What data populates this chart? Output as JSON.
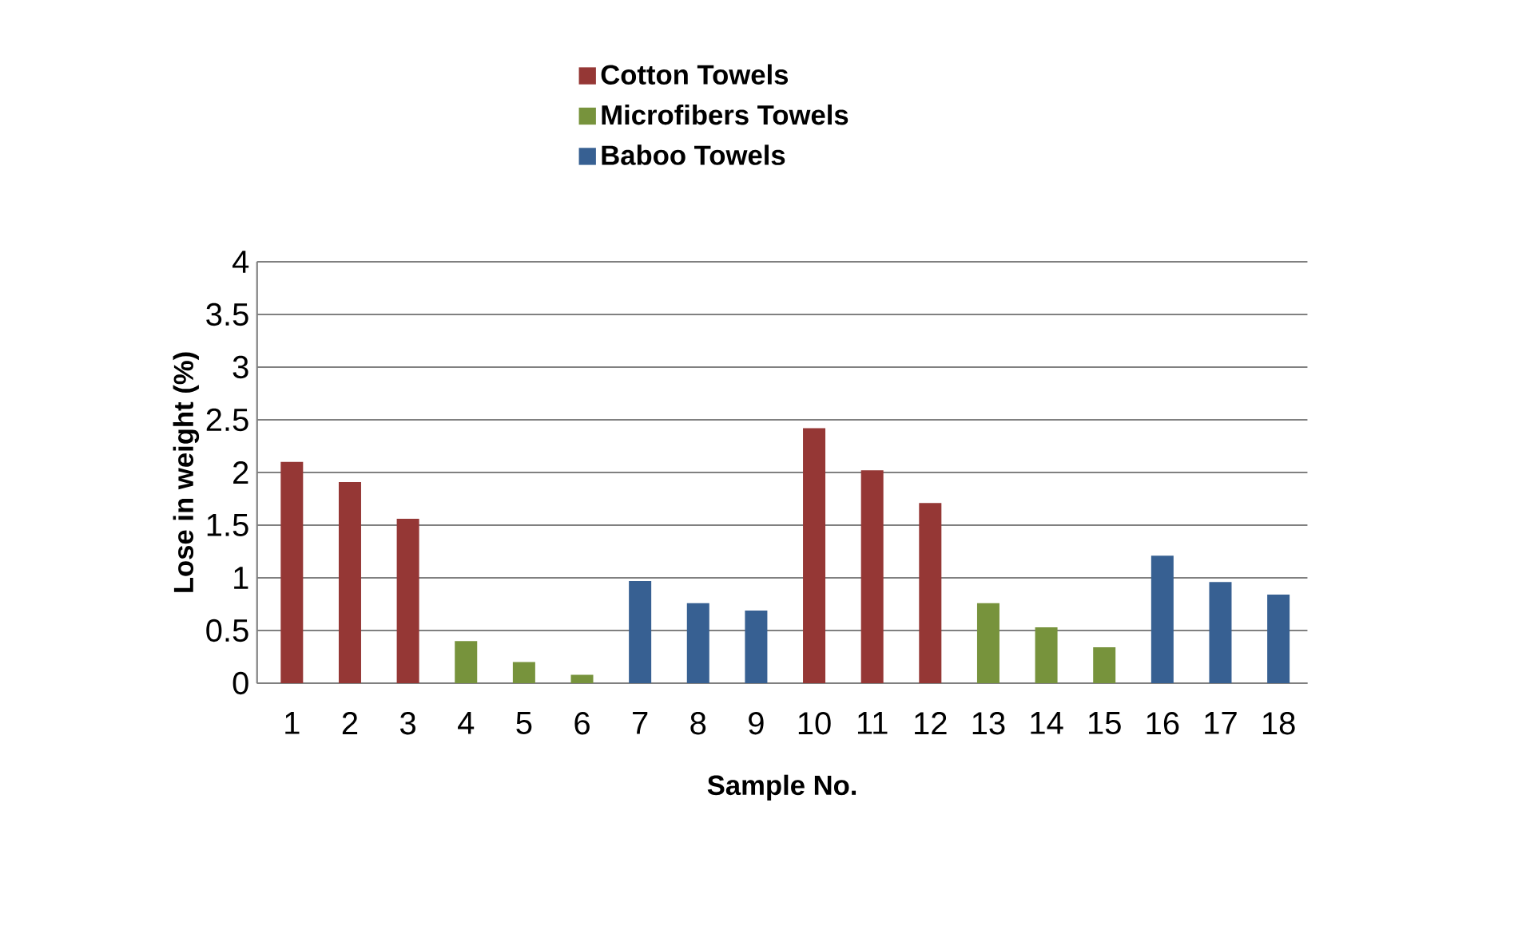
{
  "chart_data": {
    "type": "bar",
    "xlabel": "Sample No.",
    "ylabel": "Lose in weight (%)",
    "categories": [
      "1",
      "2",
      "3",
      "4",
      "5",
      "6",
      "7",
      "8",
      "9",
      "10",
      "11",
      "12",
      "13",
      "14",
      "15",
      "16",
      "17",
      "18"
    ],
    "series": [
      {
        "name": "Cotton Towels",
        "color": "#953735",
        "values": [
          2.1,
          1.91,
          1.56,
          null,
          null,
          null,
          null,
          null,
          null,
          2.42,
          2.02,
          1.71,
          null,
          null,
          null,
          null,
          null,
          null
        ]
      },
      {
        "name": "Microfibers Towels",
        "color": "#77933c",
        "values": [
          null,
          null,
          null,
          0.4,
          0.2,
          0.08,
          null,
          null,
          null,
          null,
          null,
          null,
          0.76,
          0.53,
          0.34,
          null,
          null,
          null
        ]
      },
      {
        "name": "Baboo Towels",
        "color": "#376092",
        "values": [
          null,
          null,
          null,
          null,
          null,
          null,
          0.97,
          0.76,
          0.69,
          null,
          null,
          null,
          null,
          null,
          null,
          1.21,
          0.96,
          0.84
        ]
      }
    ],
    "ylim": [
      0,
      4
    ],
    "yticks": [
      0,
      0.5,
      1,
      1.5,
      2,
      2.5,
      3,
      3.5,
      4
    ],
    "grid": "y",
    "legend": "top"
  }
}
